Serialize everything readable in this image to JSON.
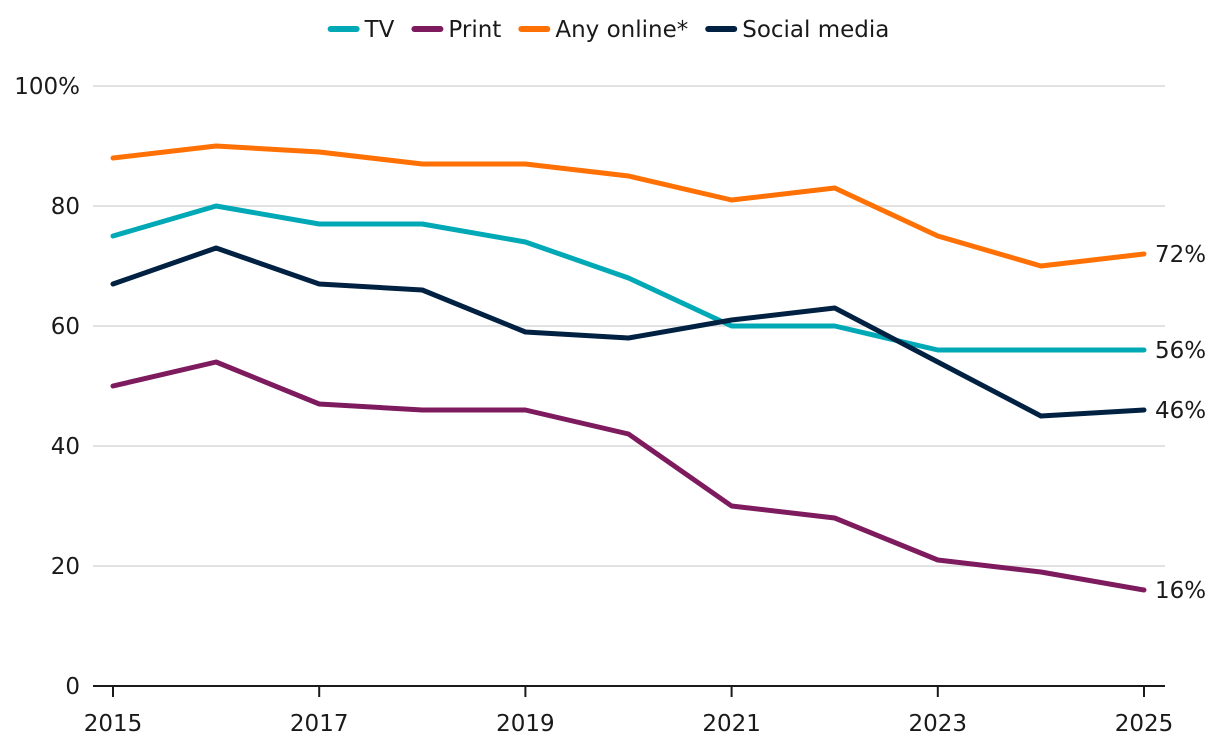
{
  "chart_data": {
    "type": "line",
    "title": "",
    "xlabel": "",
    "ylabel": "",
    "x": [
      2015,
      2016,
      2017,
      2018,
      2019,
      2020,
      2021,
      2022,
      2023,
      2024,
      2025
    ],
    "xticks": [
      "2015",
      "2017",
      "2019",
      "2021",
      "2023",
      "2025"
    ],
    "xlim": [
      2015,
      2025
    ],
    "ylim": [
      0,
      100
    ],
    "yticks": [
      "0",
      "20",
      "40",
      "60",
      "80",
      "100%"
    ],
    "grid": true,
    "legend_position": "top-center",
    "series": [
      {
        "name": "TV",
        "color": "#00a9b5",
        "values": [
          75,
          80,
          77,
          77,
          74,
          68,
          60,
          60,
          56,
          56,
          56
        ],
        "end_label": "56%"
      },
      {
        "name": "Print",
        "color": "#7d1b5e",
        "values": [
          50,
          54,
          47,
          46,
          46,
          42,
          30,
          28,
          21,
          19,
          16
        ],
        "end_label": "16%"
      },
      {
        "name": "Any online*",
        "color": "#ff7104",
        "values": [
          88,
          90,
          89,
          87,
          87,
          85,
          81,
          83,
          75,
          70,
          72
        ],
        "end_label": "72%"
      },
      {
        "name": "Social media",
        "color": "#002142",
        "values": [
          67,
          73,
          67,
          66,
          59,
          58,
          61,
          63,
          54,
          45,
          46
        ],
        "end_label": "46%"
      }
    ]
  }
}
